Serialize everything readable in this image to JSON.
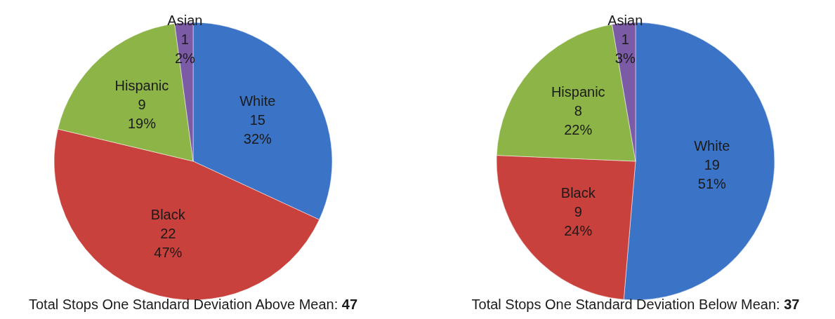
{
  "chart_data": [
    {
      "type": "pie",
      "title": "Total Stops One Standard Deviation Above Mean: 47",
      "categories": [
        "White",
        "Black",
        "Hispanic",
        "Asian"
      ],
      "values": [
        15,
        22,
        9,
        1
      ],
      "value_labels": [
        "15\n32%",
        "22\n47%",
        "9\n19%",
        "1\n2%"
      ],
      "colors": [
        "#3b74c6",
        "#c9413d",
        "#8db446",
        "#7b5aa6"
      ]
    },
    {
      "type": "pie",
      "title": "Total Stops One Standard Deviation Below Mean: 37",
      "categories": [
        "White",
        "Black",
        "Hispanic",
        "Asian"
      ],
      "values": [
        19,
        9,
        8,
        1
      ],
      "value_labels": [
        "19\n51%",
        "9\n24%",
        "8\n22%",
        "1\n3%"
      ],
      "colors": [
        "#3b74c6",
        "#c9413d",
        "#8db446",
        "#7b5aa6"
      ]
    }
  ]
}
